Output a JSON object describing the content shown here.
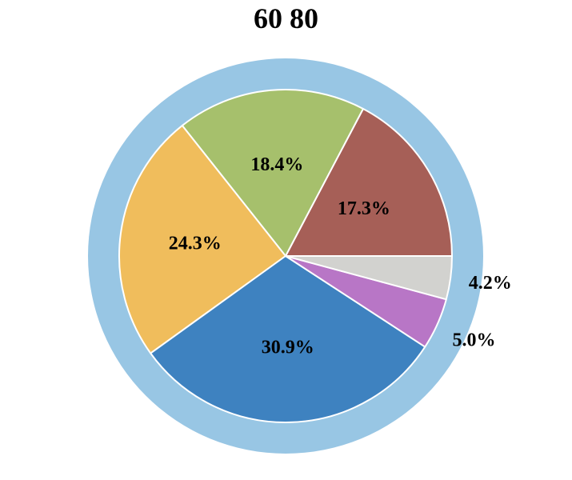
{
  "chart_data": {
    "type": "pie",
    "title": "60 80",
    "start_angle_deg": 0,
    "direction": "counterclockwise",
    "ring_color": "#98C6E4",
    "slices": [
      {
        "value": 17.3,
        "label": "17.3%",
        "color": "#A65F57",
        "label_placement": "inside"
      },
      {
        "value": 18.4,
        "label": "18.4%",
        "color": "#A6C06C",
        "label_placement": "inside"
      },
      {
        "value": 24.3,
        "label": "24.3%",
        "color": "#F0BD5C",
        "label_placement": "inside"
      },
      {
        "value": 30.9,
        "label": "30.9%",
        "color": "#3E82C0",
        "label_placement": "inside"
      },
      {
        "value": 5.0,
        "label": "5.0%",
        "color": "#B876C6",
        "label_placement": "outside"
      },
      {
        "value": 4.2,
        "label": "4.2%",
        "color": "#D2D2CF",
        "label_placement": "outside"
      }
    ]
  }
}
